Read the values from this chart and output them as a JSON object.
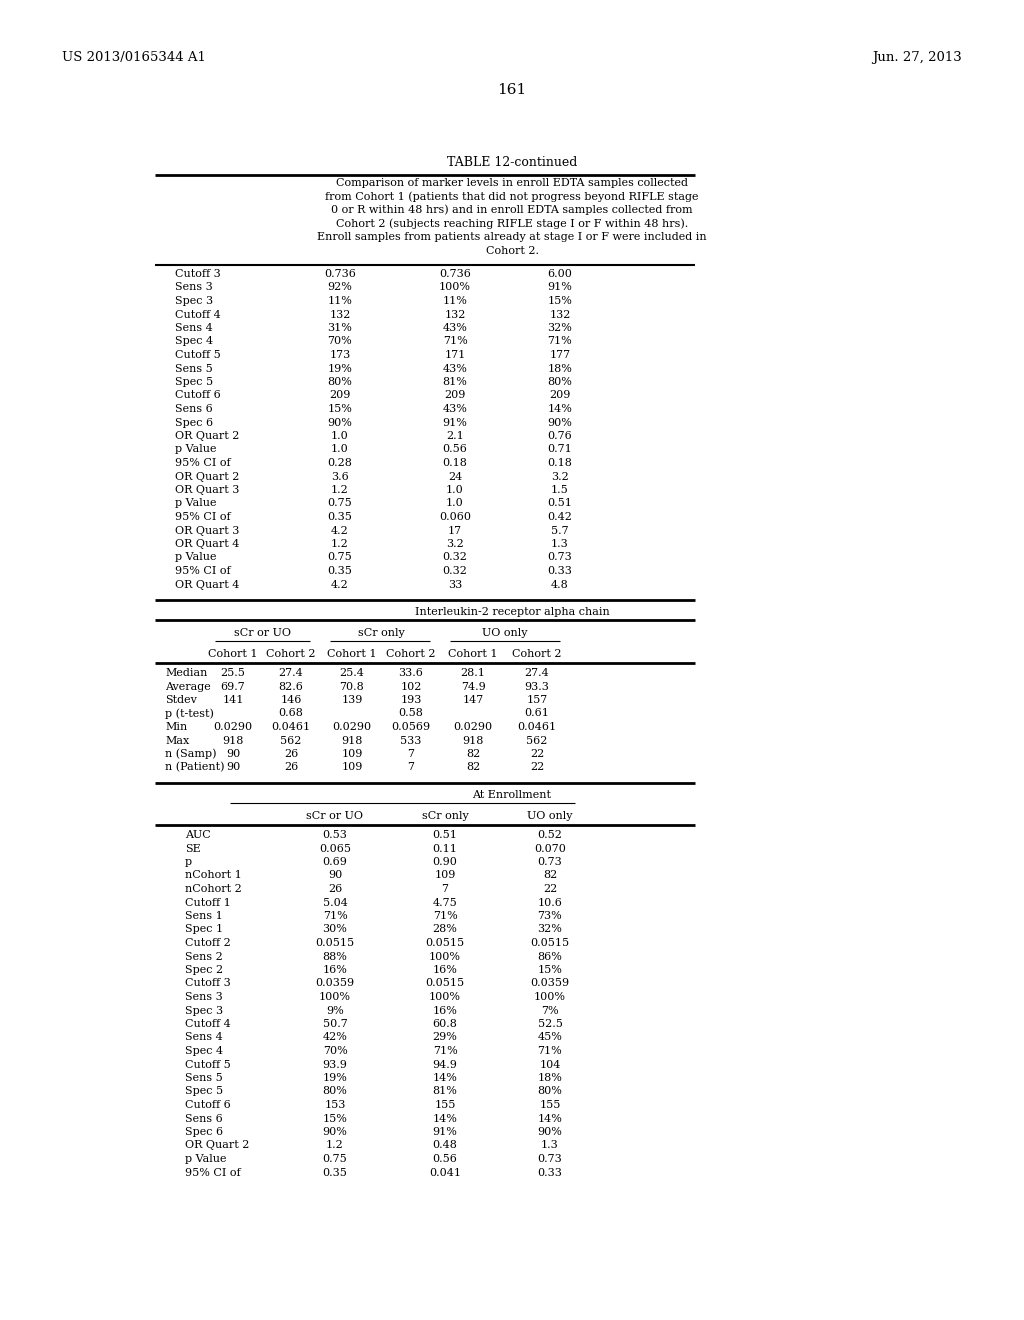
{
  "header_left": "US 2013/0165344 A1",
  "header_right": "Jun. 27, 2013",
  "page_number": "161",
  "table_title": "TABLE 12-continued",
  "description_lines": [
    "Comparison of marker levels in enroll EDTA samples collected",
    "from Cohort 1 (patients that did not progress beyond RIFLE stage",
    "0 or R within 48 hrs) and in enroll EDTA samples collected from",
    "Cohort 2 (subjects reaching RIFLE stage I or F within 48 hrs).",
    "Enroll samples from patients already at stage I or F were included in",
    "Cohort 2."
  ],
  "section1_rows": [
    [
      "Cutoff 3",
      "0.736",
      "0.736",
      "6.00"
    ],
    [
      "Sens 3",
      "92%",
      "100%",
      "91%"
    ],
    [
      "Spec 3",
      "11%",
      "11%",
      "15%"
    ],
    [
      "Cutoff 4",
      "132",
      "132",
      "132"
    ],
    [
      "Sens 4",
      "31%",
      "43%",
      "32%"
    ],
    [
      "Spec 4",
      "70%",
      "71%",
      "71%"
    ],
    [
      "Cutoff 5",
      "173",
      "171",
      "177"
    ],
    [
      "Sens 5",
      "19%",
      "43%",
      "18%"
    ],
    [
      "Spec 5",
      "80%",
      "81%",
      "80%"
    ],
    [
      "Cutoff 6",
      "209",
      "209",
      "209"
    ],
    [
      "Sens 6",
      "15%",
      "43%",
      "14%"
    ],
    [
      "Spec 6",
      "90%",
      "91%",
      "90%"
    ],
    [
      "OR Quart 2",
      "1.0",
      "2.1",
      "0.76"
    ],
    [
      "p Value",
      "1.0",
      "0.56",
      "0.71"
    ],
    [
      "95% CI of",
      "0.28",
      "0.18",
      "0.18"
    ],
    [
      "OR Quart 2",
      "3.6",
      "24",
      "3.2"
    ],
    [
      "OR Quart 3",
      "1.2",
      "1.0",
      "1.5"
    ],
    [
      "p Value",
      "0.75",
      "1.0",
      "0.51"
    ],
    [
      "95% CI of",
      "0.35",
      "0.060",
      "0.42"
    ],
    [
      "OR Quart 3",
      "4.2",
      "17",
      "5.7"
    ],
    [
      "OR Quart 4",
      "1.2",
      "3.2",
      "1.3"
    ],
    [
      "p Value",
      "0.75",
      "0.32",
      "0.73"
    ],
    [
      "95% CI of",
      "0.35",
      "0.32",
      "0.33"
    ],
    [
      "OR Quart 4",
      "4.2",
      "33",
      "4.8"
    ]
  ],
  "section2_title": "Interleukin-2 receptor alpha chain",
  "section2_col_groups": [
    "sCr or UO",
    "sCr only",
    "UO only"
  ],
  "section2_col_subgroups": [
    "Cohort 1",
    "Cohort 2",
    "Cohort 1",
    "Cohort 2",
    "Cohort 1",
    "Cohort 2"
  ],
  "section2_rows": [
    [
      "Median",
      "25.5",
      "27.4",
      "25.4",
      "33.6",
      "28.1",
      "27.4"
    ],
    [
      "Average",
      "69.7",
      "82.6",
      "70.8",
      "102",
      "74.9",
      "93.3"
    ],
    [
      "Stdev",
      "141",
      "146",
      "139",
      "193",
      "147",
      "157"
    ],
    [
      "p (t-test)",
      "",
      "0.68",
      "",
      "0.58",
      "",
      "0.61"
    ],
    [
      "Min",
      "0.0290",
      "0.0461",
      "0.0290",
      "0.0569",
      "0.0290",
      "0.0461"
    ],
    [
      "Max",
      "918",
      "562",
      "918",
      "533",
      "918",
      "562"
    ],
    [
      "n (Samp)",
      "90",
      "26",
      "109",
      "7",
      "82",
      "22"
    ],
    [
      "n (Patient)",
      "90",
      "26",
      "109",
      "7",
      "82",
      "22"
    ]
  ],
  "section3_title": "At Enrollment",
  "section3_col_groups": [
    "sCr or UO",
    "sCr only",
    "UO only"
  ],
  "section3_rows": [
    [
      "AUC",
      "0.53",
      "0.51",
      "0.52"
    ],
    [
      "SE",
      "0.065",
      "0.11",
      "0.070"
    ],
    [
      "p",
      "0.69",
      "0.90",
      "0.73"
    ],
    [
      "nCohort 1",
      "90",
      "109",
      "82"
    ],
    [
      "nCohort 2",
      "26",
      "7",
      "22"
    ],
    [
      "Cutoff 1",
      "5.04",
      "4.75",
      "10.6"
    ],
    [
      "Sens 1",
      "71%",
      "71%",
      "73%"
    ],
    [
      "Spec 1",
      "30%",
      "28%",
      "32%"
    ],
    [
      "Cutoff 2",
      "0.0515",
      "0.0515",
      "0.0515"
    ],
    [
      "Sens 2",
      "88%",
      "100%",
      "86%"
    ],
    [
      "Spec 2",
      "16%",
      "16%",
      "15%"
    ],
    [
      "Cutoff 3",
      "0.0359",
      "0.0515",
      "0.0359"
    ],
    [
      "Sens 3",
      "100%",
      "100%",
      "100%"
    ],
    [
      "Spec 3",
      "9%",
      "16%",
      "7%"
    ],
    [
      "Cutoff 4",
      "50.7",
      "60.8",
      "52.5"
    ],
    [
      "Sens 4",
      "42%",
      "29%",
      "45%"
    ],
    [
      "Spec 4",
      "70%",
      "71%",
      "71%"
    ],
    [
      "Cutoff 5",
      "93.9",
      "94.9",
      "104"
    ],
    [
      "Sens 5",
      "19%",
      "14%",
      "18%"
    ],
    [
      "Spec 5",
      "80%",
      "81%",
      "80%"
    ],
    [
      "Cutoff 6",
      "153",
      "155",
      "155"
    ],
    [
      "Sens 6",
      "15%",
      "14%",
      "14%"
    ],
    [
      "Spec 6",
      "90%",
      "91%",
      "90%"
    ],
    [
      "OR Quart 2",
      "1.2",
      "0.48",
      "1.3"
    ],
    [
      "p Value",
      "0.75",
      "0.56",
      "0.73"
    ],
    [
      "95% CI of",
      "0.35",
      "0.041",
      "0.33"
    ]
  ],
  "bg": "#ffffff",
  "fg": "#000000",
  "fs": 8.0,
  "ff": "DejaVu Serif"
}
